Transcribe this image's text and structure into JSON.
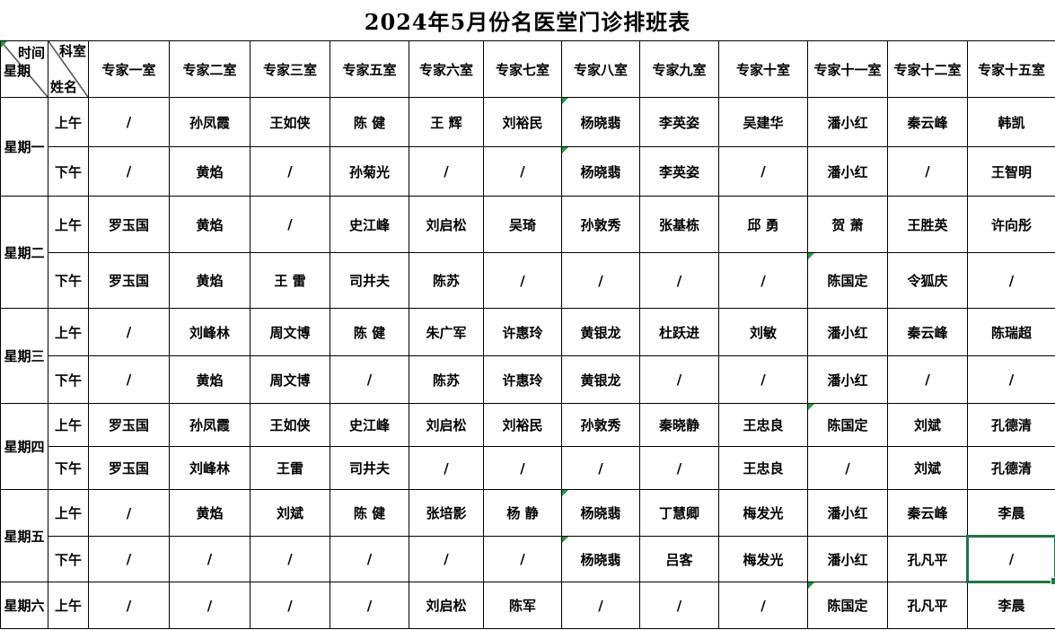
{
  "title": "2024年5月份名医堂门诊排班表",
  "corner": {
    "tl_top": "时间",
    "tl_bottom": "星期",
    "tr_top": "科室",
    "tr_bottom": "姓名",
    "tl_has_flag": true
  },
  "columns": [
    "专家一室",
    "专家二室",
    "专家三室",
    "专家五室",
    "专家六室",
    "专家七室",
    "专家八室",
    "专家九室",
    "专家十室",
    "专家十一室",
    "专家十二室",
    "专家十五室"
  ],
  "days": [
    {
      "label": "星期一",
      "rows": [
        {
          "period": "上午",
          "cells": [
            "/",
            "孙凤霞",
            "王如侠",
            "陈 健",
            "王 辉",
            "刘裕民",
            "杨晓翡",
            "李英姿",
            "吴建华",
            "潘小红",
            "秦云峰",
            "韩凯"
          ],
          "flags": [
            6
          ]
        },
        {
          "period": "下午",
          "cells": [
            "/",
            "黄焰",
            "/",
            "孙菊光",
            "/",
            "/",
            "杨晓翡",
            "李英姿",
            "/",
            "潘小红",
            "/",
            "王智明"
          ],
          "flags": [
            6
          ]
        }
      ]
    },
    {
      "label": "星期二",
      "rows": [
        {
          "period": "上午",
          "cells": [
            "罗玉国",
            "黄焰",
            "/",
            "史江峰",
            "刘启松",
            "吴琦",
            "孙敦秀",
            "张基栋",
            "邱 勇",
            "贺 萧",
            "王胜英",
            "许向彤"
          ],
          "flags": []
        },
        {
          "period": "下午",
          "cells": [
            "罗玉国",
            "黄焰",
            "王 雷",
            "司井夫",
            "陈苏",
            "/",
            "/",
            "/",
            "/",
            "陈国定",
            "令狐庆",
            "/"
          ],
          "flags": [
            9
          ]
        }
      ]
    },
    {
      "label": "星期三",
      "rows": [
        {
          "period": "上午",
          "cells": [
            "/",
            "刘峰林",
            "周文博",
            "陈 健",
            "朱广军",
            "许惠玲",
            "黄银龙",
            "杜跃进",
            "刘敏",
            "潘小红",
            "秦云峰",
            "陈瑞超"
          ],
          "flags": []
        },
        {
          "period": "下午",
          "cells": [
            "/",
            "黄焰",
            "周文博",
            "/",
            "陈苏",
            "许惠玲",
            "黄银龙",
            "/",
            "/",
            "潘小红",
            "/",
            "/"
          ],
          "flags": []
        }
      ]
    },
    {
      "label": "星期四",
      "rows": [
        {
          "period": "上午",
          "cells": [
            "罗玉国",
            "孙凤霞",
            "王如侠",
            "史江峰",
            "刘启松",
            "刘裕民",
            "孙敦秀",
            "秦晓静",
            "王忠良",
            "陈国定",
            "刘斌",
            "孔德清"
          ],
          "flags": [
            9
          ]
        },
        {
          "period": "下午",
          "cells": [
            "罗玉国",
            "刘峰林",
            "王雷",
            "司井夫",
            "/",
            "/",
            "/",
            "/",
            "王忠良",
            "/",
            "刘斌",
            "孔德清"
          ],
          "flags": []
        }
      ]
    },
    {
      "label": "星期五",
      "rows": [
        {
          "period": "上午",
          "cells": [
            "/",
            "黄焰",
            "刘斌",
            "陈 健",
            "张培影",
            "杨 静",
            "杨晓翡",
            "丁慧卿",
            "梅发光",
            "潘小红",
            "秦云峰",
            "李晨"
          ],
          "flags": [
            6
          ]
        },
        {
          "period": "下午",
          "cells": [
            "/",
            "/",
            "/",
            "/",
            "/",
            "/",
            "杨晓翡",
            "吕客",
            "梅发光",
            "潘小红",
            "孔凡平",
            "/"
          ],
          "flags": [
            6
          ]
        }
      ]
    },
    {
      "label": "星期六",
      "rows": [
        {
          "period": "上午",
          "cells": [
            "/",
            "/",
            "/",
            "/",
            "刘启松",
            "陈军",
            "/",
            "/",
            "/",
            "陈国定",
            "孔凡平",
            "李晨"
          ],
          "flags": [
            9
          ]
        }
      ]
    }
  ],
  "selection": {
    "day": 4,
    "row": 1,
    "col": 11
  },
  "colors": {
    "selection_green": "#217346",
    "flag_green": "#1e9e3d",
    "grid": "#000000"
  }
}
